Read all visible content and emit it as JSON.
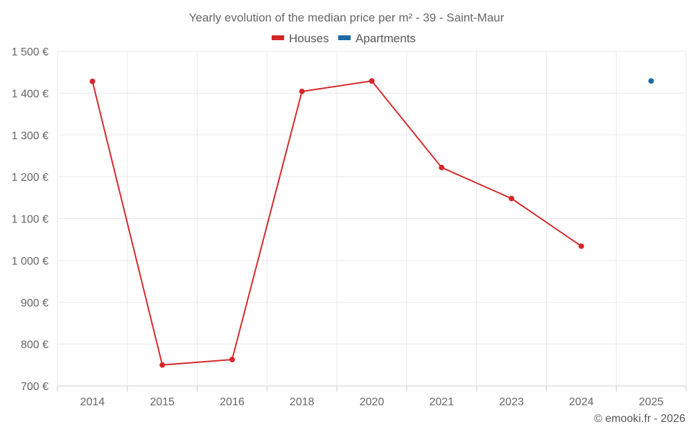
{
  "chart_data": {
    "type": "line",
    "title": "Yearly evolution of the median price per m² - 39 - Saint-Maur",
    "categories": [
      "2014",
      "2015",
      "2016",
      "2018",
      "2020",
      "2021",
      "2023",
      "2024",
      "2025"
    ],
    "series": [
      {
        "name": "Houses",
        "color": "#d62728",
        "values": [
          1428,
          750,
          763,
          1404,
          1429,
          1222,
          1148,
          1034,
          null
        ]
      },
      {
        "name": "Apartments",
        "color": "#1f6aa5",
        "values": [
          null,
          null,
          null,
          null,
          null,
          null,
          null,
          null,
          1429
        ]
      }
    ],
    "ylim": [
      700,
      1500
    ],
    "yticks": [
      700,
      800,
      900,
      1000,
      1100,
      1200,
      1300,
      1400,
      1500
    ],
    "ytick_labels": [
      "700 €",
      "800 €",
      "900 €",
      "1 000 €",
      "1 100 €",
      "1 200 €",
      "1 300 €",
      "1 400 €",
      "1 500 €"
    ],
    "xlabel": "",
    "ylabel": "",
    "grid": true,
    "legend_position": "top-center"
  },
  "credit": "© emooki.fr - 2026"
}
